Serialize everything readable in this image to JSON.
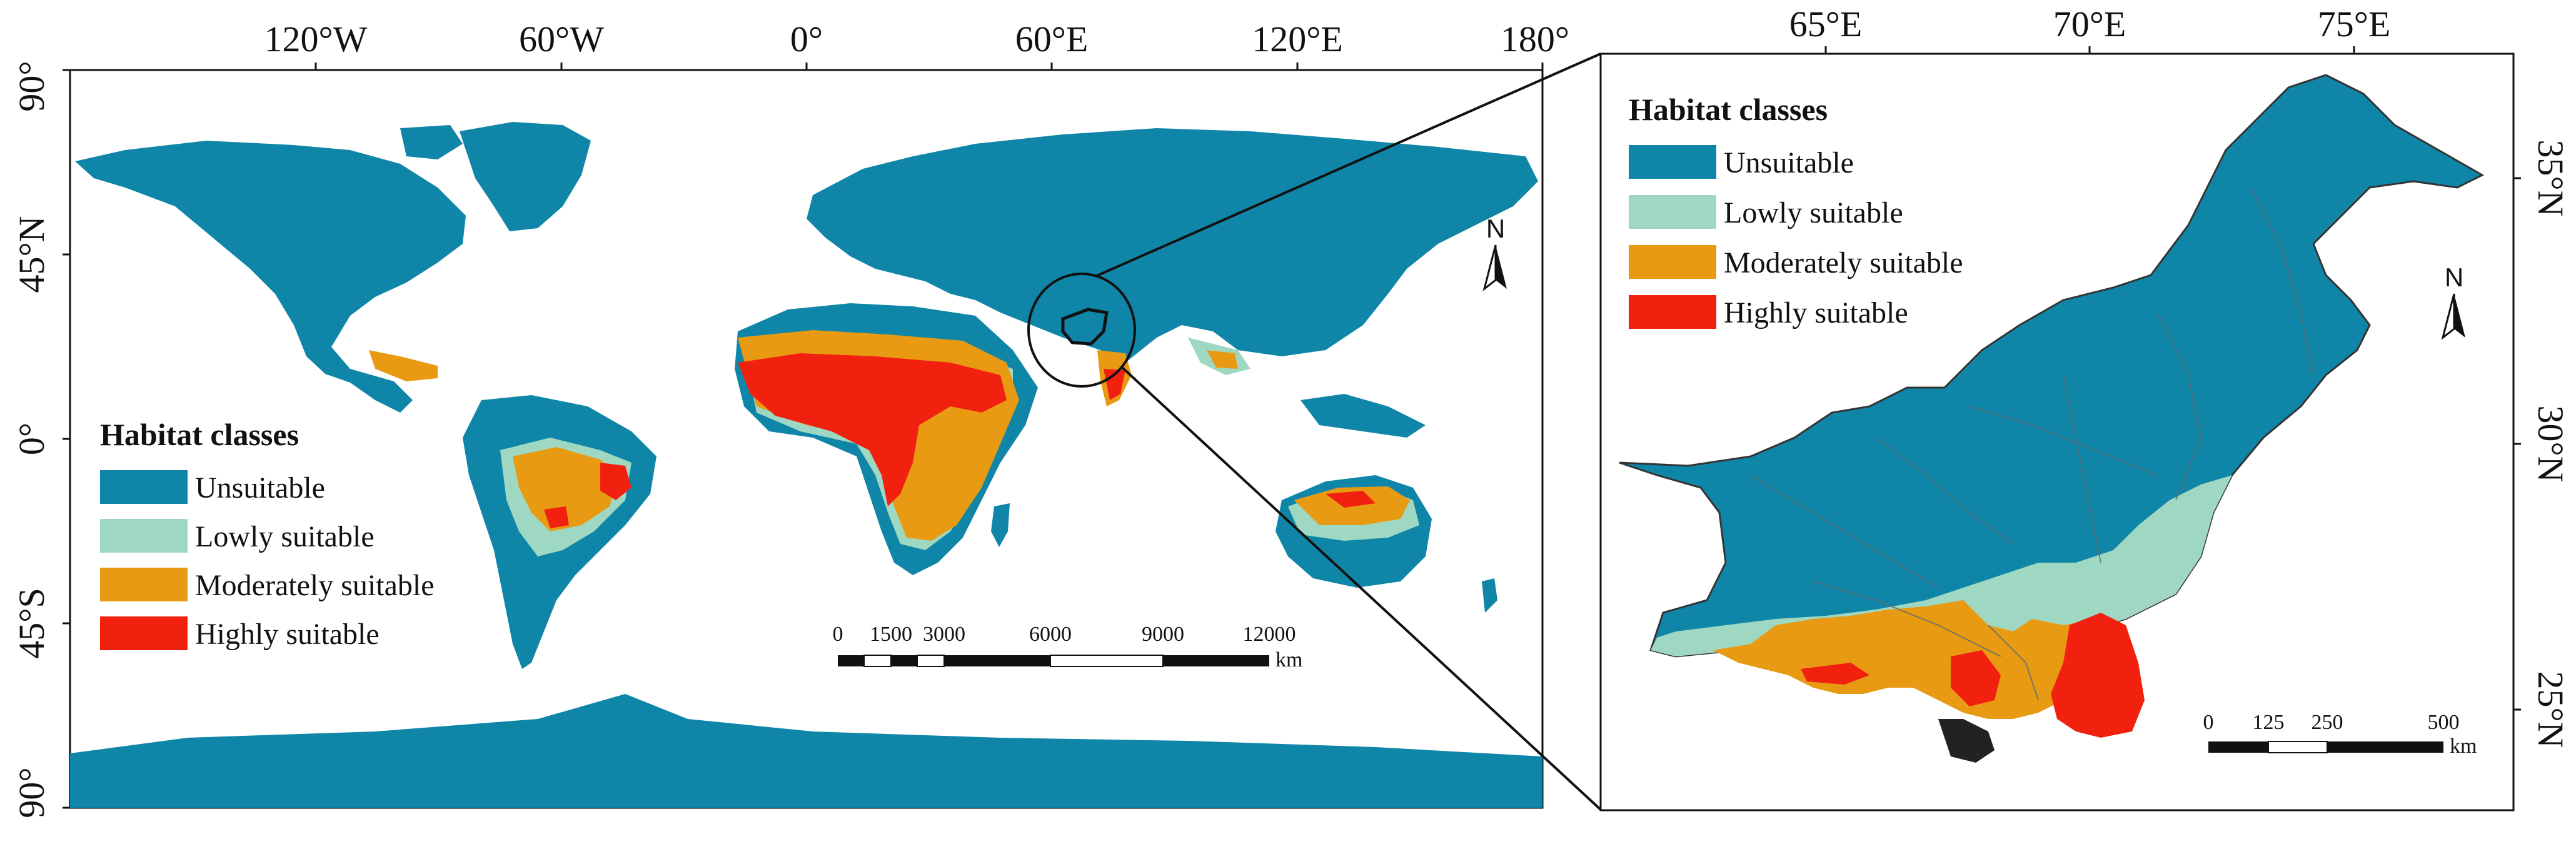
{
  "world_map": {
    "lon_ticks": [
      "120°W",
      "60°W",
      "0°",
      "60°E",
      "120°E",
      "180°"
    ],
    "lat_ticks": [
      "90°",
      "45°N",
      "0°",
      "45°S",
      "90°"
    ],
    "legend": {
      "title": "Habitat classes",
      "items": [
        {
          "label": "Unsuitable",
          "color": "#0f86a8"
        },
        {
          "label": "Lowly suitable",
          "color": "#9fd8c2"
        },
        {
          "label": "Moderately suitable",
          "color": "#e89b12"
        },
        {
          "label": "Highly suitable",
          "color": "#f2200f"
        }
      ]
    },
    "scale_bar": {
      "labels": [
        "0",
        "1500",
        "3000",
        "6000",
        "9000",
        "12000"
      ],
      "unit": "km"
    },
    "north_label": "N"
  },
  "inset_map": {
    "lon_ticks": [
      "65°E",
      "70°E",
      "75°E"
    ],
    "lat_ticks": [
      "35°N",
      "30°N",
      "25°N"
    ],
    "legend": {
      "title": "Habitat classes",
      "items": [
        {
          "label": "Unsuitable",
          "color": "#0f86a8"
        },
        {
          "label": "Lowly suitable",
          "color": "#9fd8c2"
        },
        {
          "label": "Moderately suitable",
          "color": "#e89b12"
        },
        {
          "label": "Highly suitable",
          "color": "#f2200f"
        }
      ]
    },
    "scale_bar": {
      "labels": [
        "0",
        "125",
        "250",
        "500"
      ],
      "unit": "km"
    },
    "north_label": "N"
  }
}
